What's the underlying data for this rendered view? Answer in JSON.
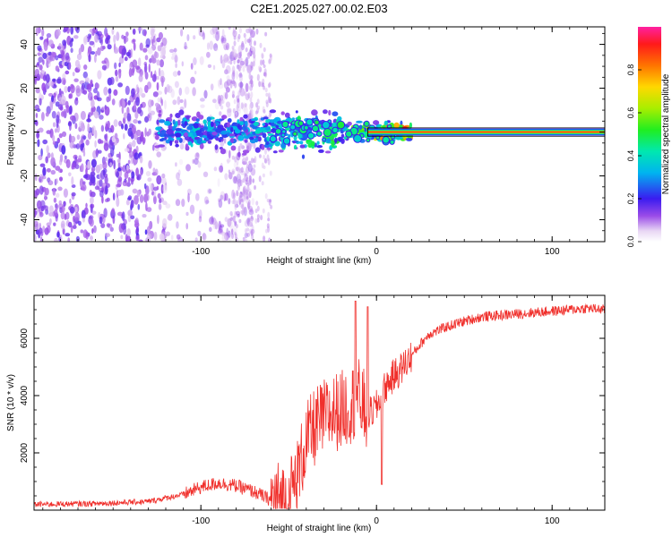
{
  "title": "C2E1.2025.027.00.02.E03",
  "chart_data": [
    {
      "type": "heatmap",
      "xlabel": "Height of straight line (km)",
      "ylabel": "Frequency (Hz)",
      "xlim": [
        -195,
        130
      ],
      "ylim": [
        -50,
        48
      ],
      "xticks": [
        -100,
        0,
        100
      ],
      "yticks": [
        -40,
        -20,
        0,
        20,
        40
      ],
      "colorbar": {
        "label": "Normalized spectral amplitude",
        "range": [
          0,
          1
        ],
        "ticks": [
          0.0,
          0.2,
          0.4,
          0.6,
          0.8
        ],
        "tick_labels": [
          "0.0",
          "0.2",
          "0.4",
          "0.6",
          "0.8"
        ]
      },
      "ridge": {
        "description_value_hz": 0,
        "heights_km": [
          -120,
          -100,
          -80,
          -60,
          -40,
          -20,
          0,
          10,
          50,
          100,
          130
        ],
        "amplitude": [
          0.35,
          0.4,
          0.35,
          0.45,
          0.5,
          0.55,
          0.75,
          0.9,
          0.95,
          0.95,
          0.95
        ]
      },
      "noise_region_km": [
        -195,
        -60
      ]
    },
    {
      "type": "line",
      "xlabel": "Height of straight line (km)",
      "ylabel": "SNR (10 * v/v)",
      "xlim": [
        -195,
        130
      ],
      "ylim": [
        0,
        7500
      ],
      "xticks": [
        -100,
        0,
        100
      ],
      "yticks": [
        2000,
        4000,
        6000
      ],
      "color": "#f0302c",
      "x": [
        -195,
        -160,
        -130,
        -110,
        -100,
        -90,
        -80,
        -70,
        -60,
        -50,
        -45,
        -40,
        -35,
        -30,
        -25,
        -20,
        -15,
        -10,
        -5,
        0,
        5,
        10,
        15,
        20,
        25,
        30,
        40,
        50,
        60,
        80,
        100,
        120,
        130
      ],
      "y": [
        200,
        230,
        300,
        550,
        800,
        950,
        850,
        650,
        350,
        400,
        1200,
        2400,
        2900,
        3200,
        3400,
        3500,
        3700,
        3900,
        3300,
        3600,
        4300,
        4700,
        5000,
        5400,
        5800,
        6150,
        6400,
        6600,
        6750,
        6850,
        6950,
        7050,
        7000
      ],
      "peaks": [
        {
          "x": -12,
          "y": 7300
        },
        {
          "x": -5,
          "y": 7100
        },
        {
          "x": 3,
          "y": 900
        }
      ]
    }
  ]
}
